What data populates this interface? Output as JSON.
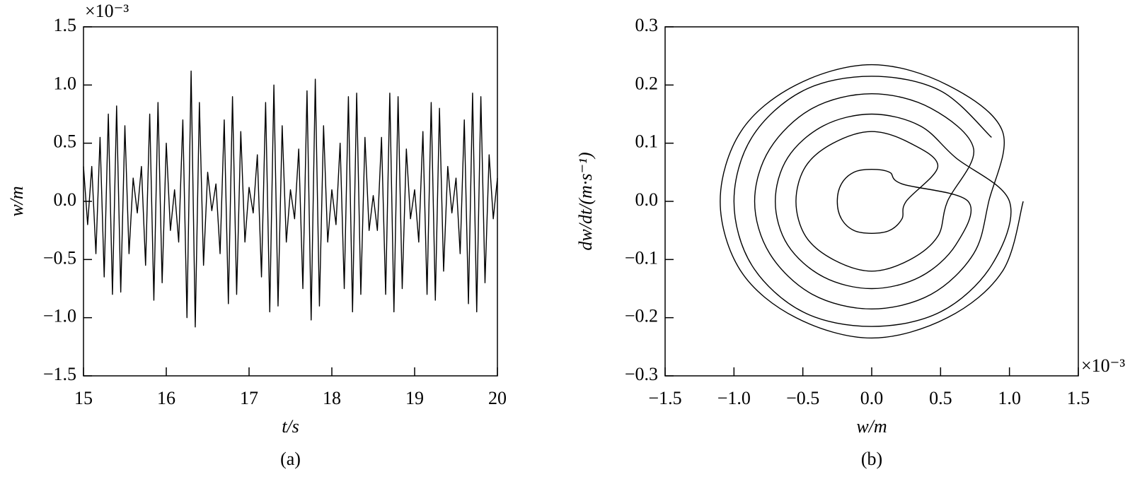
{
  "chart_data": [
    {
      "type": "line",
      "xlabel": "t/s",
      "ylabel": "w/m",
      "caption": "(a)",
      "y_multiplier": "×10⁻³",
      "xlim": [
        15,
        20
      ],
      "xticks": [
        15,
        16,
        17,
        18,
        19,
        20
      ],
      "ylim": [
        -1.5,
        1.5
      ],
      "yticks": [
        {
          "value": -1.5,
          "label": "−1.5"
        },
        {
          "value": -1.0,
          "label": "−1.0"
        },
        {
          "value": -0.5,
          "label": "−0.5"
        },
        {
          "value": 0,
          "label": "0.0"
        },
        0.5,
        {
          "value": 1.0,
          "label": "1.0"
        },
        1.5
      ],
      "series": [
        {
          "color": "#000000",
          "x": [
            15.0,
            15.05,
            15.1,
            15.15,
            15.2,
            15.25,
            15.3,
            15.35,
            15.4,
            15.45,
            15.5,
            15.55,
            15.6,
            15.65,
            15.7,
            15.75,
            15.8,
            15.85,
            15.9,
            15.95,
            16.0,
            16.05,
            16.1,
            16.15,
            16.2,
            16.25,
            16.3,
            16.35,
            16.4,
            16.45,
            16.5,
            16.55,
            16.6,
            16.65,
            16.7,
            16.75,
            16.8,
            16.85,
            16.9,
            16.95,
            17.0,
            17.05,
            17.1,
            17.15,
            17.2,
            17.25,
            17.3,
            17.35,
            17.4,
            17.45,
            17.5,
            17.55,
            17.6,
            17.65,
            17.7,
            17.75,
            17.8,
            17.85,
            17.9,
            17.95,
            18.0,
            18.05,
            18.1,
            18.15,
            18.2,
            18.25,
            18.3,
            18.35,
            18.4,
            18.45,
            18.5,
            18.55,
            18.6,
            18.65,
            18.7,
            18.75,
            18.8,
            18.85,
            18.9,
            18.95,
            19.0,
            19.05,
            19.1,
            19.15,
            19.2,
            19.25,
            19.3,
            19.35,
            19.4,
            19.45,
            19.5,
            19.55,
            19.6,
            19.65,
            19.7,
            19.75,
            19.8,
            19.85,
            19.9,
            19.95,
            20.0
          ],
          "values": [
            0.3,
            -0.2,
            0.3,
            -0.45,
            0.55,
            -0.65,
            0.75,
            -0.8,
            0.82,
            -0.78,
            0.65,
            -0.45,
            0.2,
            -0.1,
            0.3,
            -0.55,
            0.75,
            -0.85,
            0.85,
            -0.7,
            0.5,
            -0.25,
            0.1,
            -0.35,
            0.7,
            -1.0,
            1.12,
            -1.08,
            0.85,
            -0.55,
            0.25,
            -0.08,
            0.15,
            -0.45,
            0.7,
            -0.88,
            0.9,
            -0.8,
            0.6,
            -0.35,
            0.12,
            -0.1,
            0.4,
            -0.65,
            0.85,
            -0.95,
            1.0,
            -0.9,
            0.65,
            -0.35,
            0.1,
            -0.15,
            0.45,
            -0.75,
            0.95,
            -1.02,
            1.05,
            -0.9,
            0.65,
            -0.35,
            0.1,
            -0.2,
            0.5,
            -0.75,
            0.9,
            -0.95,
            0.93,
            -0.8,
            0.55,
            -0.25,
            0.05,
            -0.25,
            0.55,
            -0.8,
            0.93,
            -0.95,
            0.9,
            -0.75,
            0.45,
            -0.15,
            0.1,
            -0.35,
            0.6,
            -0.8,
            0.85,
            -0.85,
            0.8,
            -0.6,
            0.3,
            -0.1,
            0.2,
            -0.45,
            0.7,
            -0.88,
            0.93,
            -0.95,
            0.9,
            -0.7,
            0.4,
            -0.15,
            0.2
          ]
        }
      ]
    },
    {
      "type": "line",
      "xlabel": "w/m",
      "ylabel": "dw/dt/(m·s⁻¹)",
      "caption": "(b)",
      "x_multiplier": "×10⁻³",
      "xlim": [
        -1.5,
        1.5
      ],
      "xticks": [
        {
          "value": -1.5,
          "label": "−1.5"
        },
        {
          "value": -1.0,
          "label": "−1.0"
        },
        {
          "value": -0.5,
          "label": "−0.5"
        },
        {
          "value": 0,
          "label": "0.0"
        },
        0.5,
        {
          "value": 1.0,
          "label": "1.0"
        },
        1.5
      ],
      "ylim": [
        -0.3,
        0.3
      ],
      "yticks": [
        {
          "value": -0.3,
          "label": "−0.3"
        },
        {
          "value": -0.2,
          "label": "−0.2"
        },
        {
          "value": -0.1,
          "label": "−0.1"
        },
        {
          "value": 0,
          "label": "0.0"
        },
        0.1,
        0.2,
        0.3
      ],
      "series": [
        {
          "color": "#000000",
          "x": [
            1.1,
            0.95,
            0.55,
            0,
            -0.55,
            -0.95,
            -1.1,
            -0.95,
            -0.55,
            0,
            0.55,
            0.95,
            0.85,
            0.74,
            0.43,
            0,
            -0.43,
            -0.74,
            -0.85,
            -0.74,
            -0.43,
            0,
            0.43,
            0.74,
            0.55,
            0.48,
            0.28,
            0,
            -0.28,
            -0.48,
            -0.55,
            -0.48,
            -0.28,
            0,
            0.28,
            0.48,
            0.25,
            0.22,
            0.13,
            0,
            -0.13,
            -0.22,
            -0.25,
            -0.22,
            -0.13,
            0,
            0.13,
            0.22,
            0.7,
            0.61,
            0.35,
            0,
            -0.35,
            -0.61,
            -0.7,
            -0.61,
            -0.35,
            0,
            0.35,
            0.61,
            1.0,
            0.87,
            0.5,
            0,
            -0.5,
            -0.87,
            -1.0,
            -0.87,
            -0.5,
            0,
            0.5,
            0.87
          ],
          "values": [
            0,
            -0.12,
            -0.2,
            -0.235,
            -0.2,
            -0.12,
            0,
            0.12,
            0.2,
            0.235,
            0.2,
            0.12,
            0,
            -0.09,
            -0.16,
            -0.185,
            -0.16,
            -0.09,
            0,
            0.09,
            0.16,
            0.185,
            0.16,
            0.09,
            0,
            -0.06,
            -0.1,
            -0.12,
            -0.1,
            -0.06,
            0,
            0.06,
            0.1,
            0.12,
            0.1,
            0.06,
            0,
            -0.03,
            -0.05,
            -0.055,
            -0.05,
            -0.03,
            0,
            0.03,
            0.05,
            0.055,
            0.05,
            0.03,
            0,
            -0.075,
            -0.13,
            -0.15,
            -0.13,
            -0.075,
            0,
            0.075,
            0.13,
            0.15,
            0.13,
            0.075,
            0,
            -0.11,
            -0.19,
            -0.215,
            -0.19,
            -0.11,
            0,
            0.11,
            0.19,
            0.215,
            0.19,
            0.11
          ]
        }
      ]
    }
  ]
}
